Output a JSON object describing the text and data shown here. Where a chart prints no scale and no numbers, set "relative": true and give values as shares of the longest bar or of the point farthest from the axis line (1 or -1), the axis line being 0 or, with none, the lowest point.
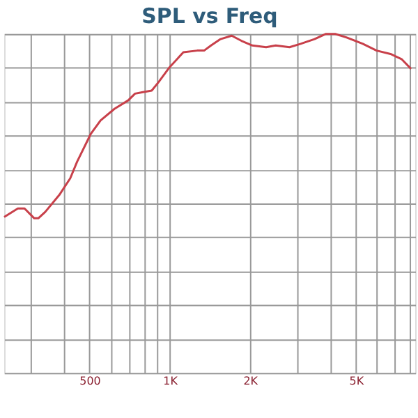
{
  "chart_data": {
    "type": "line",
    "title": "SPL vs Freq",
    "relative": true,
    "log": "x",
    "grid": true,
    "xlim": [
      239,
      8350
    ],
    "xticks": [
      {
        "value": 300,
        "label": null
      },
      {
        "value": 400,
        "label": null
      },
      {
        "value": 500,
        "label": "500"
      },
      {
        "value": 600,
        "label": null
      },
      {
        "value": 700,
        "label": null
      },
      {
        "value": 800,
        "label": null
      },
      {
        "value": 900,
        "label": null
      },
      {
        "value": 1000,
        "label": "1K"
      },
      {
        "value": 2000,
        "label": "2K"
      },
      {
        "value": 3000,
        "label": null
      },
      {
        "value": 4000,
        "label": null
      },
      {
        "value": 5000,
        "label": "5K"
      },
      {
        "value": 6000,
        "label": null
      },
      {
        "value": 7000,
        "label": null
      },
      {
        "value": 8000,
        "label": null
      }
    ],
    "series": [
      {
        "color": "#c8404a",
        "x": [
          239,
          269,
          285,
          310,
          321,
          341,
          385,
          423,
          449,
          506,
          550,
          620,
          698,
          741,
          787,
          856,
          908,
          999,
          1125,
          1268,
          1346,
          1429,
          1552,
          1709,
          1858,
          2043,
          2301,
          2500,
          2817,
          3102,
          3497,
          3846,
          4182,
          4600,
          5308,
          5981,
          6743,
          7418,
          8055
        ],
        "values": [
          0.46,
          0.485,
          0.485,
          0.456,
          0.456,
          0.475,
          0.525,
          0.574,
          0.623,
          0.706,
          0.745,
          0.779,
          0.804,
          0.824,
          0.828,
          0.833,
          0.858,
          0.902,
          0.946,
          0.951,
          0.951,
          0.966,
          0.985,
          0.995,
          0.98,
          0.966,
          0.961,
          0.966,
          0.961,
          0.971,
          0.985,
          1.0,
          1.0,
          0.99,
          0.971,
          0.951,
          0.941,
          0.926,
          0.897
        ]
      }
    ]
  }
}
